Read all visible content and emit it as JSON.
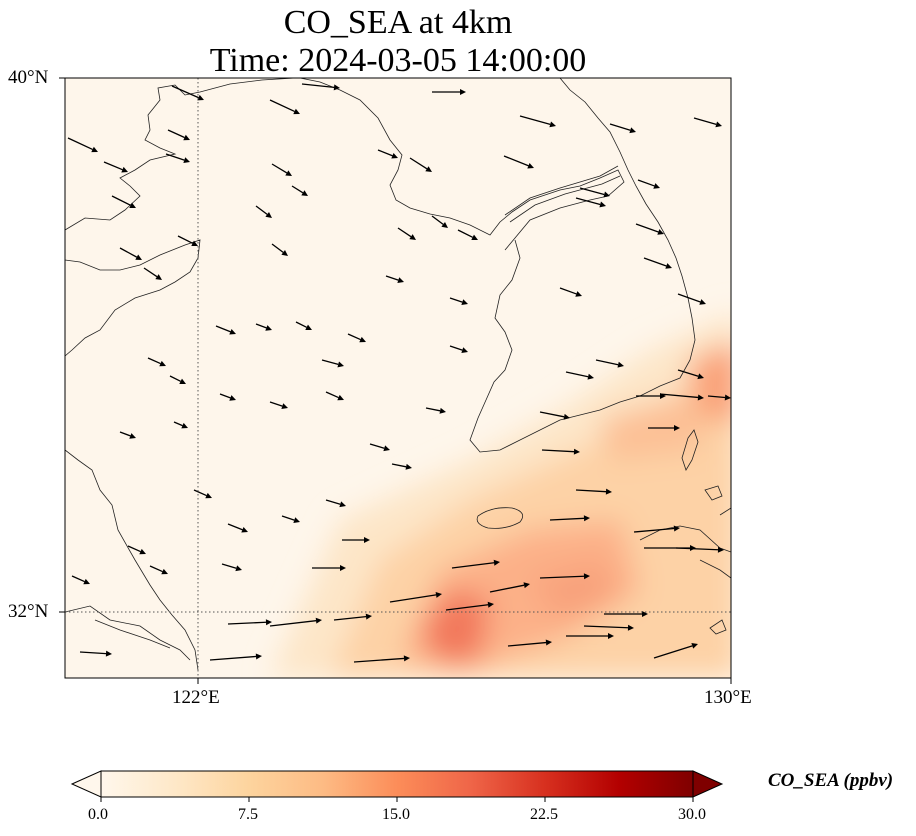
{
  "title": {
    "line1": "CO_SEA at 4km",
    "line2": "Time: 2024-03-05 14:00:00"
  },
  "axes": {
    "lat_labels": [
      "40°N",
      "32°N"
    ],
    "lon_labels": [
      "122°E",
      "130°E"
    ],
    "gridlines": "dotted",
    "extent": {
      "lon": [
        120.4,
        130
      ],
      "lat": [
        31,
        40
      ]
    }
  },
  "colorbar": {
    "title": "CO_SEA (ppbv)",
    "tick_labels": [
      "0.0",
      "7.5",
      "15.0",
      "22.5",
      "30.0"
    ],
    "ticks": [
      0,
      7.5,
      15,
      22.5,
      30
    ],
    "range": [
      0,
      30
    ],
    "extend": "both",
    "colormap": "OrRd",
    "colors": [
      "#fff7ec",
      "#fee8c8",
      "#fdd49e",
      "#fdbb84",
      "#fc8d59",
      "#ef6548",
      "#d7301f",
      "#b30000",
      "#7f0000"
    ]
  },
  "chart_data": {
    "type": "heatmap",
    "variable": "CO_SEA",
    "units": "ppbv",
    "height": "4km",
    "time": "2024-03-05 14:00:00",
    "features": [
      "coastlines",
      "wind vectors"
    ]
  }
}
